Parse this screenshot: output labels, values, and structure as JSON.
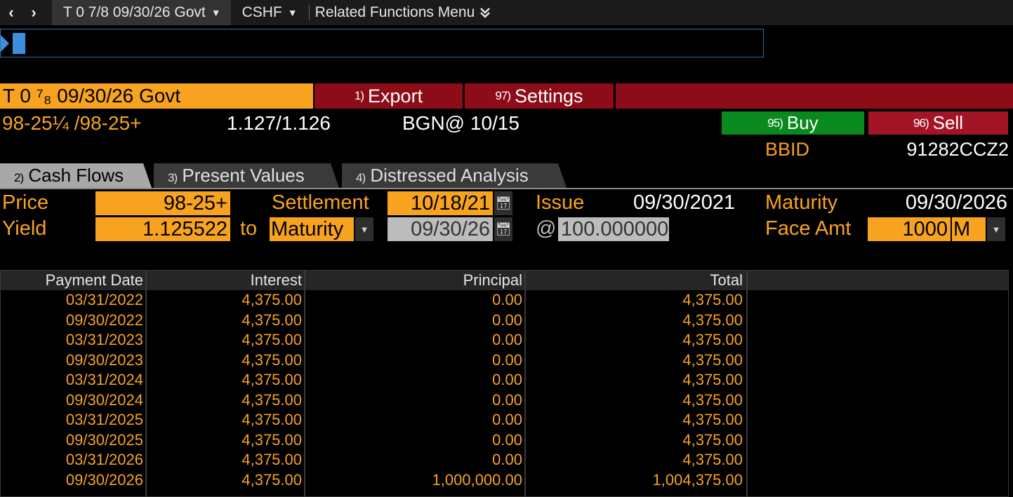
{
  "topbar": {
    "back_icon": "chevron-left-icon",
    "forward_icon": "chevron-right-icon",
    "security_selector": "T 0 7/8 09/30/26 Govt",
    "function_selector": "CSHF",
    "related_menu": "Related Functions Menu"
  },
  "header": {
    "security_title": "T 0 ⁷₈ 09/30/26 Govt",
    "export_num": "1)",
    "export_label": "Export",
    "settings_num": "97)",
    "settings_label": "Settings"
  },
  "quote": {
    "price": "98-25¼ /98-25+",
    "yield": "1.127/1.126",
    "source": "BGN@ 10/15",
    "buy_num": "95)",
    "buy_label": "Buy",
    "sell_num": "96)",
    "sell_label": "Sell",
    "bbid_label": "BBID",
    "bbid_value": "91282CCZ2"
  },
  "tabs": [
    {
      "num": "2)",
      "label": "Cash Flows",
      "active": true
    },
    {
      "num": "3)",
      "label": "Present Values",
      "active": false
    },
    {
      "num": "4)",
      "label": "Distressed Analysis",
      "active": false
    }
  ],
  "params": {
    "price_label": "Price",
    "price_value": "98-25+",
    "settlement_label": "Settlement",
    "settlement_value": "10/18/21",
    "issue_label": "Issue",
    "issue_value": "09/30/2021",
    "maturity_label": "Maturity",
    "maturity_value": "09/30/2026",
    "yield_label": "Yield",
    "yield_value": "1.125522",
    "to_label": "to",
    "to_value": "Maturity",
    "to_date": "09/30/26",
    "at_label": "@",
    "at_value": "100.000000",
    "face_label": "Face Amt",
    "face_value": "1000",
    "face_unit": "M"
  },
  "table": {
    "columns": [
      "Payment Date",
      "Interest",
      "Principal",
      "Total"
    ],
    "rows": [
      [
        "03/31/2022",
        "4,375.00",
        "0.00",
        "4,375.00"
      ],
      [
        "09/30/2022",
        "4,375.00",
        "0.00",
        "4,375.00"
      ],
      [
        "03/31/2023",
        "4,375.00",
        "0.00",
        "4,375.00"
      ],
      [
        "09/30/2023",
        "4,375.00",
        "0.00",
        "4,375.00"
      ],
      [
        "03/31/2024",
        "4,375.00",
        "0.00",
        "4,375.00"
      ],
      [
        "09/30/2024",
        "4,375.00",
        "0.00",
        "4,375.00"
      ],
      [
        "03/31/2025",
        "4,375.00",
        "0.00",
        "4,375.00"
      ],
      [
        "09/30/2025",
        "4,375.00",
        "0.00",
        "4,375.00"
      ],
      [
        "03/31/2026",
        "4,375.00",
        "0.00",
        "4,375.00"
      ],
      [
        "09/30/2026",
        "4,375.00",
        "1,000,000.00",
        "1,004,375.00"
      ]
    ]
  },
  "colors": {
    "amber": "#f8a31f",
    "menu_red": "#8c0c18",
    "buy_green": "#0a8a1e",
    "sell_red": "#a31526"
  }
}
